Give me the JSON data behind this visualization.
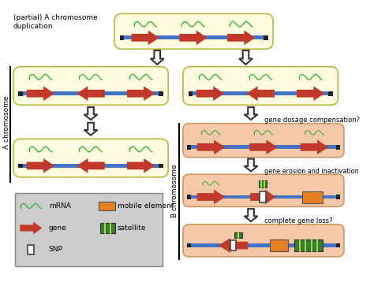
{
  "bg_color": "#ffffff",
  "yellow_box_color": "#fffce0",
  "salmon_box_color": "#f5c8aa",
  "blue_line_color": "#4472c4",
  "red_arrow_color": "#c0392b",
  "green_mrna_color": "#22aa22",
  "dark_green_satellite": "#3a7d2c",
  "orange_mobile": "#e67e22",
  "black_color": "#222222",
  "gray_legend_bg": "#cccccc",
  "title_text": "(partial) A chromosome\nduplication",
  "a_chrom_label": "A chromosome",
  "b_chrom_label": "B chromosome",
  "label_gene_dosage": "gene dosage compensation?",
  "label_gene_erosion": "gene erosion and inactivation",
  "label_gene_loss": "complete gene loss?",
  "legend_mrna": "mRNA",
  "legend_gene": "gene",
  "legend_snp": "SNP",
  "legend_mobile": "mobile element",
  "legend_satellite": "satellite"
}
